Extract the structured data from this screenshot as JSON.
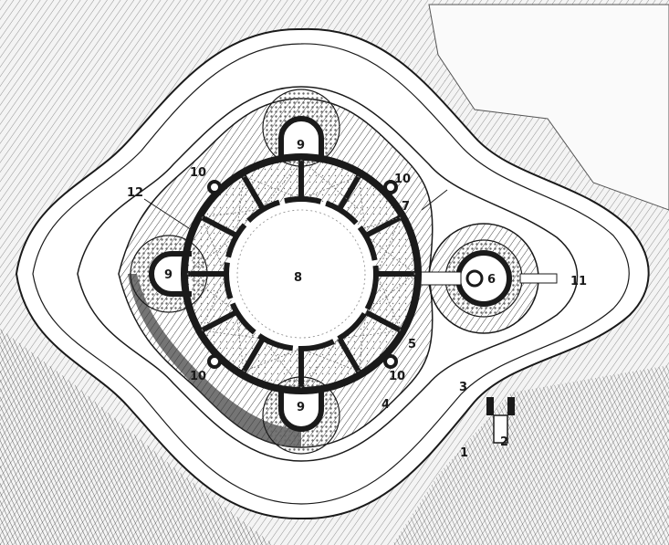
{
  "diagram": {
    "labels": [
      {
        "id": "l1",
        "text": "1"
      },
      {
        "id": "l2",
        "text": "2"
      },
      {
        "id": "l3",
        "text": "3"
      },
      {
        "id": "l4",
        "text": "4"
      },
      {
        "id": "l5",
        "text": "5"
      },
      {
        "id": "l6",
        "text": "6"
      },
      {
        "id": "l7",
        "text": "7"
      },
      {
        "id": "l8",
        "text": "8"
      },
      {
        "id": "l9a",
        "text": "9"
      },
      {
        "id": "l9b",
        "text": "9"
      },
      {
        "id": "l9c",
        "text": "9"
      },
      {
        "id": "l10a",
        "text": "10"
      },
      {
        "id": "l10b",
        "text": "10"
      },
      {
        "id": "l10c",
        "text": "10"
      },
      {
        "id": "l10d",
        "text": "10"
      },
      {
        "id": "l11",
        "text": "11"
      },
      {
        "id": "l12",
        "text": "12"
      }
    ],
    "colors": {
      "ink": "#1a1a1a",
      "paper": "#ffffff",
      "hatch": "#555555",
      "shade": "#bdbdbd"
    }
  }
}
